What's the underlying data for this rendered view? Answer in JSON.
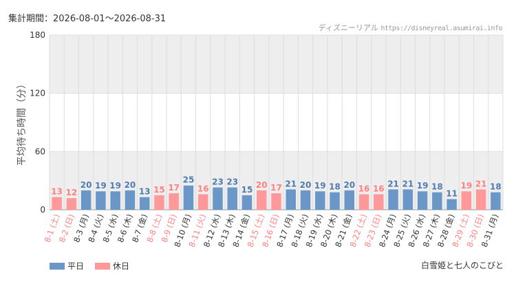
{
  "header": {
    "period_label": "集計期間：",
    "period_value": "2026-08-01〜2026-08-31",
    "credit_site": "ディズニーリアル",
    "credit_url": "https://disneyreal.asumirai.info"
  },
  "attraction_name": "白雪姫と七人のこびと",
  "colors": {
    "weekday": "#6b97c8",
    "holiday": "#ff9999",
    "weekday_label": "#4f7cb0",
    "holiday_label": "#ff8080",
    "band": "#eeeeee",
    "grid": "#dddddd"
  },
  "chart_data": {
    "type": "bar",
    "ylabel": "平均待ち時間（分）",
    "ylim": [
      0,
      180
    ],
    "yticks": [
      0,
      60,
      120,
      180
    ],
    "bands": [
      [
        120,
        180
      ],
      [
        0,
        60
      ]
    ],
    "grid": true,
    "legend_position": "bottom-left",
    "categories": [
      "8-1 (土)",
      "8-2 (日)",
      "8-3 (月)",
      "8-4 (火)",
      "8-5 (水)",
      "8-6 (木)",
      "8-7 (金)",
      "8-8 (土)",
      "8-9 (日)",
      "8-10 (月)",
      "8-11 (火)",
      "8-12 (水)",
      "8-13 (木)",
      "8-14 (金)",
      "8-15 (土)",
      "8-16 (日)",
      "8-17 (月)",
      "8-18 (火)",
      "8-19 (水)",
      "8-20 (木)",
      "8-21 (金)",
      "8-22 (土)",
      "8-23 (日)",
      "8-24 (月)",
      "8-25 (火)",
      "8-26 (水)",
      "8-27 (木)",
      "8-28 (金)",
      "8-29 (土)",
      "8-30 (日)",
      "8-31 (月)"
    ],
    "values": [
      13,
      12,
      20,
      19,
      19,
      20,
      13,
      15,
      17,
      25,
      16,
      23,
      23,
      15,
      20,
      17,
      21,
      20,
      19,
      18,
      20,
      16,
      16,
      21,
      21,
      19,
      18,
      11,
      19,
      21,
      18
    ],
    "day_type": [
      "holiday",
      "holiday",
      "weekday",
      "weekday",
      "weekday",
      "weekday",
      "weekday",
      "holiday",
      "holiday",
      "weekday",
      "holiday",
      "weekday",
      "weekday",
      "weekday",
      "holiday",
      "holiday",
      "weekday",
      "weekday",
      "weekday",
      "weekday",
      "weekday",
      "holiday",
      "holiday",
      "weekday",
      "weekday",
      "weekday",
      "weekday",
      "weekday",
      "holiday",
      "holiday",
      "weekday"
    ],
    "series": [
      {
        "key": "weekday",
        "name": "平日"
      },
      {
        "key": "holiday",
        "name": "休日"
      }
    ]
  }
}
